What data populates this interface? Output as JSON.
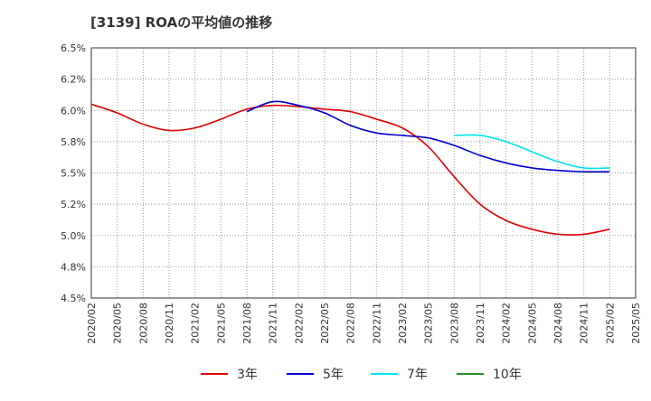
{
  "title": "[3139]  ROAの平均値の推移",
  "chart_data": {
    "type": "line",
    "title": "[3139]  ROAの平均値の推移",
    "xlabel": "",
    "ylabel": "",
    "ylim": [
      4.5,
      6.5
    ],
    "y_ticks": [
      4.5,
      4.75,
      5.0,
      5.25,
      5.5,
      5.75,
      6.0,
      6.25,
      6.5
    ],
    "y_tick_labels": [
      "4.5%",
      "4.8%",
      "5.0%",
      "5.2%",
      "5.5%",
      "5.8%",
      "6.0%",
      "6.2%",
      "6.5%"
    ],
    "x_tick_labels": [
      "2020/02",
      "2020/05",
      "2020/08",
      "2020/11",
      "2021/02",
      "2021/05",
      "2021/08",
      "2021/11",
      "2022/02",
      "2022/05",
      "2022/08",
      "2022/11",
      "2023/02",
      "2023/05",
      "2023/08",
      "2023/11",
      "2024/02",
      "2024/05",
      "2024/08",
      "2024/11",
      "2025/02",
      "2025/05"
    ],
    "grid": true,
    "legend_position": "bottom",
    "series": [
      {
        "name": "3年",
        "color": "#dd0000",
        "start_index": 0,
        "values": [
          6.05,
          5.98,
          5.89,
          5.84,
          5.86,
          5.93,
          6.01,
          6.04,
          6.03,
          6.01,
          5.99,
          5.93,
          5.86,
          5.71,
          5.47,
          5.25,
          5.12,
          5.05,
          5.01,
          5.01,
          5.05
        ]
      },
      {
        "name": "5年",
        "color": "#0000cc",
        "start_index": 6,
        "values": [
          5.99,
          6.07,
          6.04,
          5.98,
          5.88,
          5.82,
          5.8,
          5.78,
          5.72,
          5.64,
          5.58,
          5.54,
          5.52,
          5.51,
          5.51
        ]
      },
      {
        "name": "7年",
        "color": "#00e5ee",
        "start_index": 14,
        "values": [
          5.8,
          5.8,
          5.75,
          5.67,
          5.59,
          5.54,
          5.54
        ]
      },
      {
        "name": "10年",
        "color": "#228b22",
        "start_index": 0,
        "values": []
      }
    ]
  }
}
